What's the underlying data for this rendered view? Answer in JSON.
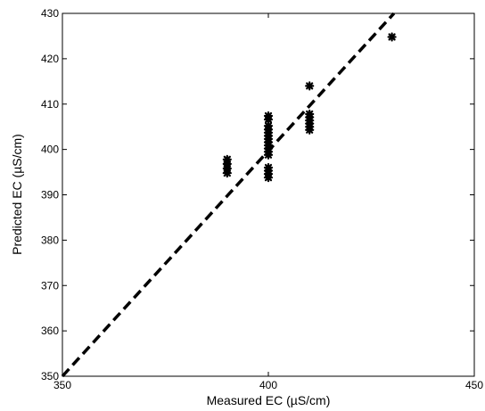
{
  "chart_data": {
    "type": "scatter",
    "title": "",
    "xlabel": "Measured EC (µS/cm)",
    "ylabel": "Predicted EC (µS/cm)",
    "xlim": [
      350,
      450
    ],
    "ylim": [
      350,
      430
    ],
    "x_ticks": [
      350,
      400,
      450
    ],
    "y_ticks": [
      350,
      360,
      370,
      380,
      390,
      400,
      410,
      420,
      430
    ],
    "grid": false,
    "legend": "none",
    "series": [
      {
        "marker": "star",
        "color": "#000000",
        "points": [
          {
            "x": 390,
            "y": 394.8
          },
          {
            "x": 390,
            "y": 395.8
          },
          {
            "x": 390,
            "y": 396.8
          },
          {
            "x": 390,
            "y": 397.8
          },
          {
            "x": 400,
            "y": 393.8
          },
          {
            "x": 400,
            "y": 394.6
          },
          {
            "x": 400,
            "y": 395.3
          },
          {
            "x": 400,
            "y": 396.0
          },
          {
            "x": 400,
            "y": 398.8
          },
          {
            "x": 400,
            "y": 399.5
          },
          {
            "x": 400,
            "y": 400.2
          },
          {
            "x": 400,
            "y": 400.9
          },
          {
            "x": 400,
            "y": 401.6
          },
          {
            "x": 400,
            "y": 402.3
          },
          {
            "x": 400,
            "y": 403.0
          },
          {
            "x": 400,
            "y": 403.7
          },
          {
            "x": 400,
            "y": 404.4
          },
          {
            "x": 400,
            "y": 405.2
          },
          {
            "x": 400,
            "y": 406.6
          },
          {
            "x": 400,
            "y": 407.4
          },
          {
            "x": 410,
            "y": 404.3
          },
          {
            "x": 410,
            "y": 405.0
          },
          {
            "x": 410,
            "y": 405.7
          },
          {
            "x": 410,
            "y": 406.4
          },
          {
            "x": 410,
            "y": 407.1
          },
          {
            "x": 410,
            "y": 407.8
          },
          {
            "x": 410,
            "y": 414.0
          },
          {
            "x": 430,
            "y": 424.8
          }
        ]
      }
    ],
    "fit_line": {
      "style": "dashed",
      "color": "#000000",
      "x": [
        350,
        430.5
      ],
      "y": [
        350,
        430
      ]
    }
  }
}
